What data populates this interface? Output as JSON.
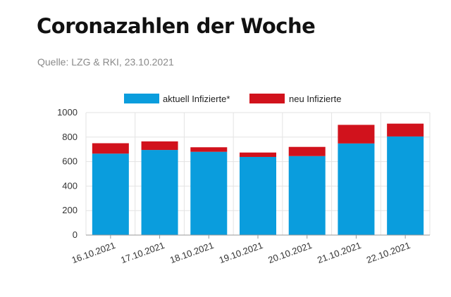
{
  "header": {
    "title": "Coronazahlen der Woche",
    "source": "Quelle: LZG & RKI, 23.10.2021"
  },
  "chart_data": {
    "type": "bar",
    "stacked": true,
    "categories": [
      "16.10.2021",
      "17.10.2021",
      "18.10.2021",
      "19.10.2021",
      "20.10.2021",
      "21.10.2021",
      "22.10.2021"
    ],
    "series": [
      {
        "name": "aktuell Infizierte*",
        "color": "#0a9ddd",
        "values": [
          665,
          695,
          680,
          638,
          645,
          748,
          805
        ]
      },
      {
        "name": "neu Infizierte",
        "color": "#d1121c",
        "values": [
          85,
          70,
          37,
          36,
          75,
          152,
          105
        ]
      }
    ],
    "ylim": [
      0,
      1000
    ],
    "yticks": [
      0,
      200,
      400,
      600,
      800,
      1000
    ],
    "grid": true,
    "legend": "top"
  }
}
